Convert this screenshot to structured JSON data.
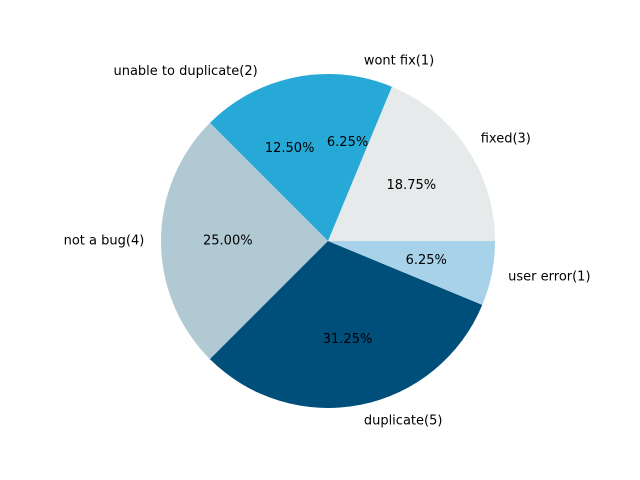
{
  "chart_data": {
    "type": "pie",
    "title": "",
    "start_angle_deg": 0,
    "direction": "counterclockwise",
    "slices": [
      {
        "label": "fixed(3)",
        "value": 3,
        "percent": "18.75%",
        "color": "#e6eaeb"
      },
      {
        "label": "wont fix(1)",
        "value": 1,
        "percent": "6.25%",
        "color": "#26a9d6"
      },
      {
        "label": "unable to duplicate(2)",
        "value": 2,
        "percent": "12.50%",
        "color": "#26a9d6"
      },
      {
        "label": "not a bug(4)",
        "value": 4,
        "percent": "25.00%",
        "color": "#b0c9d3"
      },
      {
        "label": "duplicate(5)",
        "value": 5,
        "percent": "31.25%",
        "color": "#004f7a"
      },
      {
        "label": "user error(1)",
        "value": 1,
        "percent": "6.25%",
        "color": "#a7d2e9"
      }
    ]
  }
}
